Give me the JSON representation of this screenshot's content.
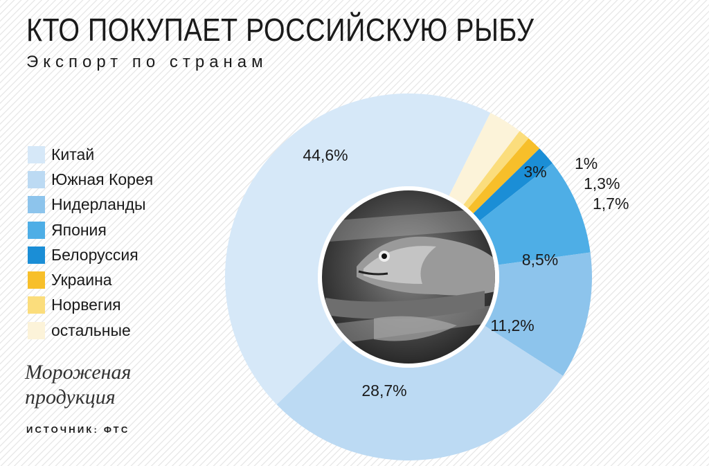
{
  "header": {
    "title": "КТО ПОКУПАЕТ РОССИЙСКУЮ РЫБУ",
    "subtitle": "Экспорт по странам"
  },
  "note": [
    "Мороженая",
    "продукция"
  ],
  "source": "ИСТОЧНИК: ФТС",
  "photo": {
    "description_icon": "fish-photo"
  },
  "chart_data": {
    "type": "pie",
    "variant": "donut",
    "title": "КТО ПОКУПАЕТ РОССИЙСКУЮ РЫБУ",
    "subtitle": "Экспорт по странам",
    "legend_position": "left",
    "slices": [
      {
        "name": "Китай",
        "value": 44.6,
        "label": "44,6%",
        "color": "#d6e8f8"
      },
      {
        "name": "Южная Корея",
        "value": 28.7,
        "label": "28,7%",
        "color": "#bcdaf3"
      },
      {
        "name": "Нидерланды",
        "value": 11.2,
        "label": "11,2%",
        "color": "#8dc4ec"
      },
      {
        "name": "Япония",
        "value": 8.5,
        "label": "8,5%",
        "color": "#4eaee6"
      },
      {
        "name": "Белоруссия",
        "value": 1.7,
        "label": "1,7%",
        "color": "#1b8ed6"
      },
      {
        "name": "Украина",
        "value": 1.3,
        "label": "1,3%",
        "color": "#f7bf2a"
      },
      {
        "name": "Норвегия",
        "value": 1.0,
        "label": "1%",
        "color": "#fbdd7c"
      },
      {
        "name": "остальные",
        "value": 3.0,
        "label": "3%",
        "color": "#fcf3d9"
      }
    ]
  }
}
